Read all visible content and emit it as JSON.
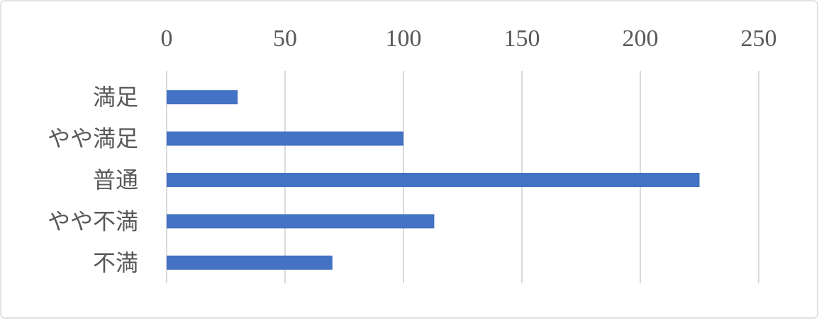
{
  "chart_data": {
    "type": "bar",
    "orientation": "horizontal",
    "categories": [
      "満足",
      "やや満足",
      "普通",
      "やや不満",
      "不満"
    ],
    "values": [
      30,
      100,
      225,
      113,
      70
    ],
    "color": "#4472c4",
    "xlim": [
      0,
      250
    ],
    "xticks": [
      0,
      50,
      100,
      150,
      200,
      250
    ],
    "grid": true
  }
}
